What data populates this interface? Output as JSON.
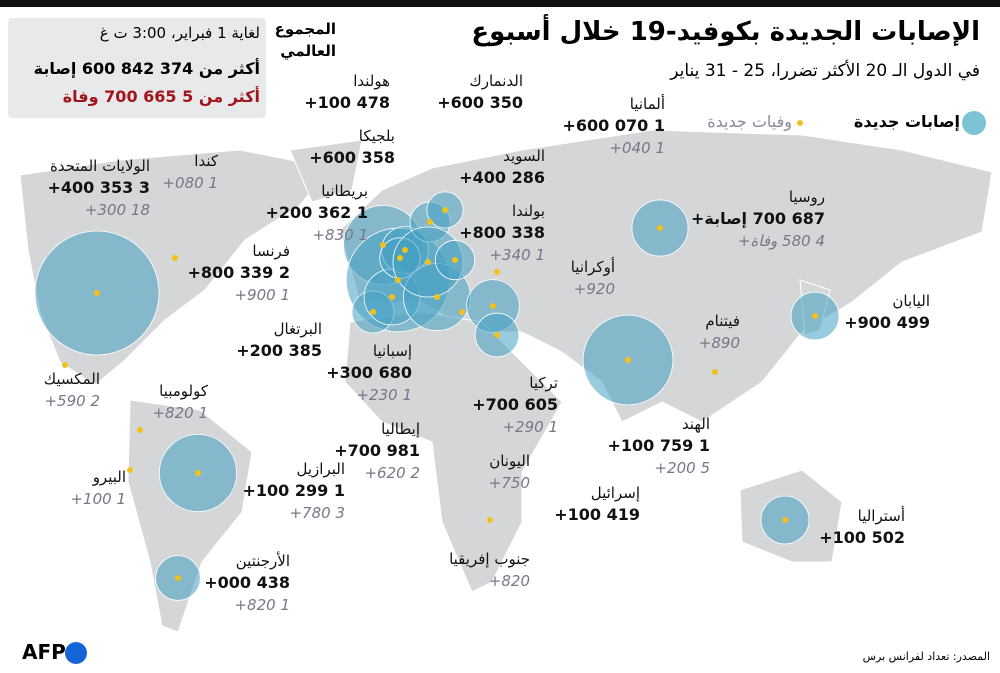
{
  "header": {
    "title": "الإصابات الجديدة بكوفيد-19 خلال أسبوع",
    "subtitle": "في الدول الـ 20 الأكثر تضررا، 25 - 31 يناير"
  },
  "legend": {
    "cases": "إصابات جديدة",
    "deaths": "وفيات جديدة"
  },
  "global_total": {
    "heading": "المجموع العالمي",
    "as_of": "لغاية 1 فبراير، 3:00 ت غ",
    "cases": "أكثر من 374 842 600 إصابة",
    "deaths": "أكثر من 5 665 700 وفاة"
  },
  "countries": [
    {
      "name": "الولايات المتحدة",
      "cases": 3353400,
      "cases_label": "3 353 400+",
      "deaths_label": "18 300+"
    },
    {
      "name": "كندا",
      "deaths_label": "1 080+"
    },
    {
      "name": "المكسيك",
      "deaths_label": "2 590+"
    },
    {
      "name": "كولومبيا",
      "deaths_label": "1 820+"
    },
    {
      "name": "البيرو",
      "deaths_label": "1 100+"
    },
    {
      "name": "البرازيل",
      "cases": 1299100,
      "cases_label": "1 299 100+",
      "deaths_label": "3 780+"
    },
    {
      "name": "الأرجنتين",
      "cases": 438000,
      "cases_label": "438 000+",
      "deaths_label": "1 820+"
    },
    {
      "name": "بريطانيا",
      "cases": 1362200,
      "cases_label": "1 362 200+",
      "deaths_label": "1 830+"
    },
    {
      "name": "فرنسا",
      "cases": 2339800,
      "cases_label": "2 339 800+",
      "deaths_label": "1 900+"
    },
    {
      "name": "البرتغال",
      "cases": 385200,
      "cases_label": "385 200+"
    },
    {
      "name": "إسبانيا",
      "cases": 680300,
      "cases_label": "680 300+",
      "deaths_label": "1 230+"
    },
    {
      "name": "إيطاليا",
      "cases": 981700,
      "cases_label": "981 700+",
      "deaths_label": "2 620+"
    },
    {
      "name": "هولندا",
      "cases": 478100,
      "cases_label": "478 100+"
    },
    {
      "name": "بلجيكا",
      "cases": 358600,
      "cases_label": "358 600+"
    },
    {
      "name": "الدنمارك",
      "cases": 350600,
      "cases_label": "350 600+"
    },
    {
      "name": "ألمانيا",
      "cases": 1070600,
      "cases_label": "1 070 600+",
      "deaths_label": "1 040+"
    },
    {
      "name": "السويد",
      "cases": 286400,
      "cases_label": "286 400+"
    },
    {
      "name": "بولندا",
      "cases": 338800,
      "cases_label": "338 800+",
      "deaths_label": "1 340+"
    },
    {
      "name": "أوكرانيا",
      "deaths_label": "920+"
    },
    {
      "name": "تركيا",
      "cases": 605700,
      "cases_label": "605 700+",
      "deaths_label": "1 290+"
    },
    {
      "name": "اليونان",
      "deaths_label": "750+"
    },
    {
      "name": "إسرائيل",
      "cases": 419100,
      "cases_label": "419 100+"
    },
    {
      "name": "جنوب إفريقيا",
      "deaths_label": "820+"
    },
    {
      "name": "روسيا",
      "cases": 687700,
      "cases_label": "687 700 إصابة+",
      "deaths_label": "4 580 وفاة+"
    },
    {
      "name": "الهند",
      "cases": 1759100,
      "cases_label": "1 759 100+",
      "deaths_label": "5 200+"
    },
    {
      "name": "فيتنام",
      "deaths_label": "890+"
    },
    {
      "name": "اليابان",
      "cases": 499900,
      "cases_label": "499 900+"
    },
    {
      "name": "أستراليا",
      "cases": 502100,
      "cases_label": "502 100+"
    }
  ],
  "source": "المصدر: تعداد لفرانس برس",
  "logo": "AFP"
}
